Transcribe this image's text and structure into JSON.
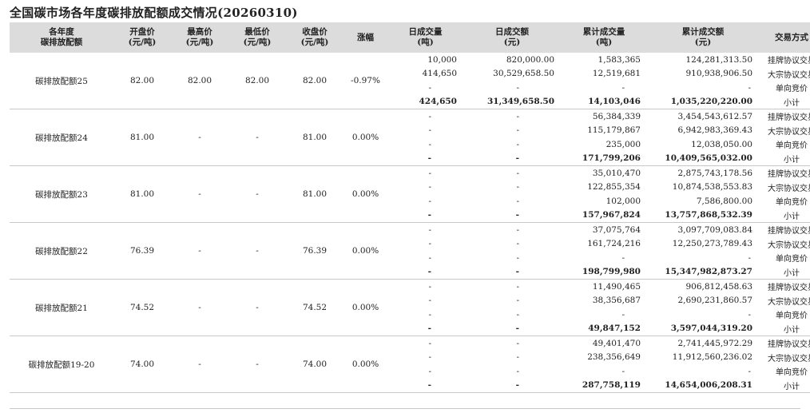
{
  "title": "全国碳市场各年度碳排放配额成交情况(20260310)",
  "headers": {
    "product": [
      "各年度",
      "碳排放配额"
    ],
    "open": [
      "开盘价",
      "(元/吨)"
    ],
    "high": [
      "最高价",
      "(元/吨)"
    ],
    "low": [
      "最低价",
      "(元/吨)"
    ],
    "close": [
      "收盘价",
      "(元/吨)"
    ],
    "change": [
      "涨幅",
      ""
    ],
    "daily_volume": [
      "日成交量",
      "(吨)"
    ],
    "daily_turnover": [
      "日成交额",
      "(元)"
    ],
    "cum_volume": [
      "累计成交量",
      "(吨)"
    ],
    "cum_turnover": [
      "累计成交额",
      "(元)"
    ],
    "method": [
      "交易方式",
      ""
    ]
  },
  "groups": [
    {
      "product": "碳排放配额25",
      "open": "82.00",
      "high": "82.00",
      "low": "82.00",
      "close": "82.00",
      "change": "-0.97%",
      "rows": [
        {
          "daily_volume": "10,000",
          "daily_turnover": "820,000.00",
          "cum_volume": "1,583,365",
          "cum_turnover": "124,281,313.50",
          "method": "挂牌协议交易"
        },
        {
          "daily_volume": "414,650",
          "daily_turnover": "30,529,658.50",
          "cum_volume": "12,519,681",
          "cum_turnover": "910,938,906.50",
          "method": "大宗协议交易"
        },
        {
          "daily_volume": "-",
          "daily_turnover": "-",
          "cum_volume": "-",
          "cum_turnover": "-",
          "method": "单向竞价"
        },
        {
          "daily_volume": "424,650",
          "daily_turnover": "31,349,658.50",
          "cum_volume": "14,103,046",
          "cum_turnover": "1,035,220,220.00",
          "method": "小计"
        }
      ]
    },
    {
      "product": "碳排放配额24",
      "open": "81.00",
      "high": "-",
      "low": "-",
      "close": "81.00",
      "change": "0.00%",
      "rows": [
        {
          "daily_volume": "-",
          "daily_turnover": "-",
          "cum_volume": "56,384,339",
          "cum_turnover": "3,454,543,612.57",
          "method": "挂牌协议交易"
        },
        {
          "daily_volume": "-",
          "daily_turnover": "-",
          "cum_volume": "115,179,867",
          "cum_turnover": "6,942,983,369.43",
          "method": "大宗协议交易"
        },
        {
          "daily_volume": "-",
          "daily_turnover": "-",
          "cum_volume": "235,000",
          "cum_turnover": "12,038,050.00",
          "method": "单向竞价"
        },
        {
          "daily_volume": "-",
          "daily_turnover": "-",
          "cum_volume": "171,799,206",
          "cum_turnover": "10,409,565,032.00",
          "method": "小计"
        }
      ]
    },
    {
      "product": "碳排放配额23",
      "open": "81.00",
      "high": "-",
      "low": "-",
      "close": "81.00",
      "change": "0.00%",
      "rows": [
        {
          "daily_volume": "-",
          "daily_turnover": "-",
          "cum_volume": "35,010,470",
          "cum_turnover": "2,875,743,178.56",
          "method": "挂牌协议交易"
        },
        {
          "daily_volume": "-",
          "daily_turnover": "-",
          "cum_volume": "122,855,354",
          "cum_turnover": "10,874,538,553.83",
          "method": "大宗协议交易"
        },
        {
          "daily_volume": "-",
          "daily_turnover": "-",
          "cum_volume": "102,000",
          "cum_turnover": "7,586,800.00",
          "method": "单向竞价"
        },
        {
          "daily_volume": "-",
          "daily_turnover": "-",
          "cum_volume": "157,967,824",
          "cum_turnover": "13,757,868,532.39",
          "method": "小计"
        }
      ]
    },
    {
      "product": "碳排放配额22",
      "open": "76.39",
      "high": "-",
      "low": "-",
      "close": "76.39",
      "change": "0.00%",
      "rows": [
        {
          "daily_volume": "-",
          "daily_turnover": "-",
          "cum_volume": "37,075,764",
          "cum_turnover": "3,097,709,083.84",
          "method": "挂牌协议交易"
        },
        {
          "daily_volume": "-",
          "daily_turnover": "-",
          "cum_volume": "161,724,216",
          "cum_turnover": "12,250,273,789.43",
          "method": "大宗协议交易"
        },
        {
          "daily_volume": "-",
          "daily_turnover": "-",
          "cum_volume": "-",
          "cum_turnover": "-",
          "method": "单向竞价"
        },
        {
          "daily_volume": "-",
          "daily_turnover": "-",
          "cum_volume": "198,799,980",
          "cum_turnover": "15,347,982,873.27",
          "method": "小计"
        }
      ]
    },
    {
      "product": "碳排放配额21",
      "open": "74.52",
      "high": "-",
      "low": "-",
      "close": "74.52",
      "change": "0.00%",
      "rows": [
        {
          "daily_volume": "-",
          "daily_turnover": "-",
          "cum_volume": "11,490,465",
          "cum_turnover": "906,812,458.63",
          "method": "挂牌协议交易"
        },
        {
          "daily_volume": "-",
          "daily_turnover": "-",
          "cum_volume": "38,356,687",
          "cum_turnover": "2,690,231,860.57",
          "method": "大宗协议交易"
        },
        {
          "daily_volume": "-",
          "daily_turnover": "-",
          "cum_volume": "-",
          "cum_turnover": "-",
          "method": "单向竞价"
        },
        {
          "daily_volume": "-",
          "daily_turnover": "-",
          "cum_volume": "49,847,152",
          "cum_turnover": "3,597,044,319.20",
          "method": "小计"
        }
      ]
    },
    {
      "product": "碳排放配额19-20",
      "open": "74.00",
      "high": "-",
      "low": "-",
      "close": "74.00",
      "change": "0.00%",
      "rows": [
        {
          "daily_volume": "-",
          "daily_turnover": "-",
          "cum_volume": "49,401,470",
          "cum_turnover": "2,741,445,972.29",
          "method": "挂牌协议交易"
        },
        {
          "daily_volume": "-",
          "daily_turnover": "-",
          "cum_volume": "238,356,649",
          "cum_turnover": "11,912,560,236.02",
          "method": "大宗协议交易"
        },
        {
          "daily_volume": "-",
          "daily_turnover": "-",
          "cum_volume": "-",
          "cum_turnover": "-",
          "method": "单向竞价"
        },
        {
          "daily_volume": "-",
          "daily_turnover": "-",
          "cum_volume": "287,758,119",
          "cum_turnover": "14,654,006,208.31",
          "method": "小计"
        }
      ]
    }
  ]
}
